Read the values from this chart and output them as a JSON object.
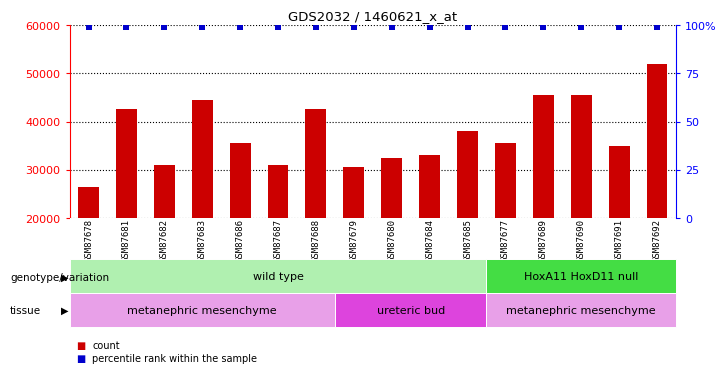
{
  "title": "GDS2032 / 1460621_x_at",
  "samples": [
    "GSM87678",
    "GSM87681",
    "GSM87682",
    "GSM87683",
    "GSM87686",
    "GSM87687",
    "GSM87688",
    "GSM87679",
    "GSM87680",
    "GSM87684",
    "GSM87685",
    "GSM87677",
    "GSM87689",
    "GSM87690",
    "GSM87691",
    "GSM87692"
  ],
  "counts": [
    26500,
    42500,
    31000,
    44500,
    35500,
    31000,
    42500,
    30500,
    32500,
    33000,
    38000,
    35500,
    45500,
    45500,
    35000,
    52000
  ],
  "percentile_ranks": [
    99,
    99,
    99,
    99,
    99,
    99,
    99,
    99,
    99,
    99,
    99,
    99,
    99,
    99,
    99,
    99
  ],
  "bar_color": "#cc0000",
  "dot_color": "#0000cc",
  "ymin": 20000,
  "ymax": 60000,
  "yticks": [
    20000,
    30000,
    40000,
    50000,
    60000
  ],
  "ytick_labels": [
    "20000",
    "30000",
    "40000",
    "50000",
    "60000"
  ],
  "y2ticks": [
    0,
    25,
    50,
    75,
    100
  ],
  "y2tick_labels": [
    "0",
    "25",
    "50",
    "75",
    "100%"
  ],
  "genotype_groups": [
    {
      "label": "wild type",
      "start": 0,
      "end": 11,
      "color": "#b0f0b0"
    },
    {
      "label": "HoxA11 HoxD11 null",
      "start": 11,
      "end": 16,
      "color": "#44dd44"
    }
  ],
  "tissue_groups": [
    {
      "label": "metanephric mesenchyme",
      "start": 0,
      "end": 7,
      "color": "#e8a0e8"
    },
    {
      "label": "ureteric bud",
      "start": 7,
      "end": 11,
      "color": "#dd44dd"
    },
    {
      "label": "metanephric mesenchyme",
      "start": 11,
      "end": 16,
      "color": "#e8a0e8"
    }
  ],
  "legend_count_color": "#cc0000",
  "legend_rank_color": "#0000cc",
  "background_color": "#ffffff",
  "sample_label_bg": "#c8c8c8"
}
